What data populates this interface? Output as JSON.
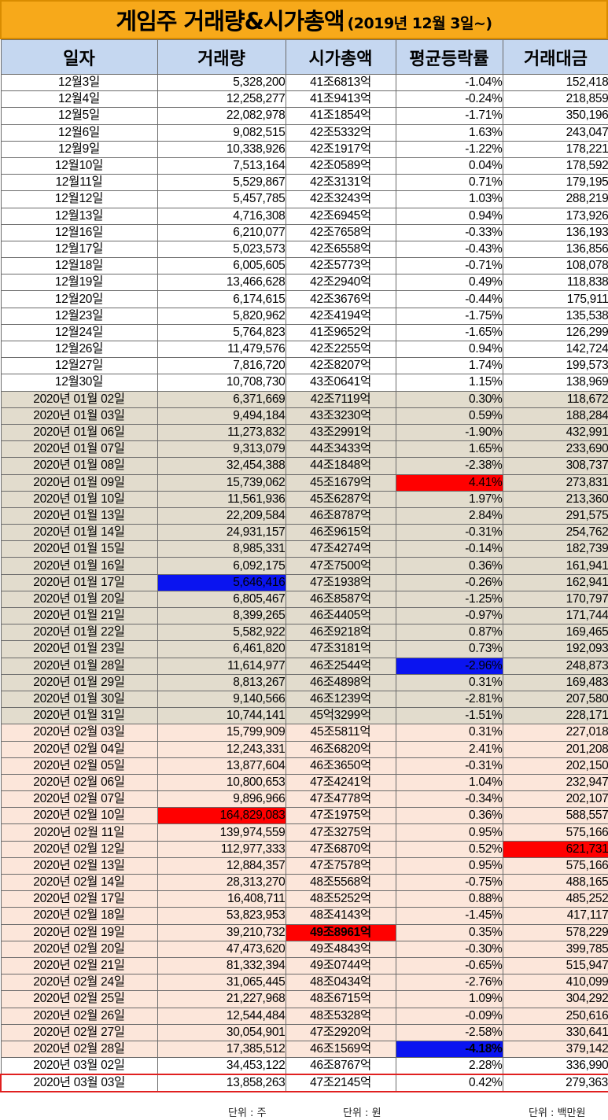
{
  "title": {
    "main": "게임주 거래량&시가총액",
    "sub": "(2019년 12월 3일~)"
  },
  "columns": [
    "일자",
    "거래량",
    "시가총액",
    "평균등락률",
    "거래대금"
  ],
  "units": {
    "volume": "단위 : 주",
    "cap": "단위 : 원",
    "amount": "단위 : 백만원"
  },
  "colors": {
    "title_bg": "#f7a91a",
    "header_bg": "#c5d7f0",
    "dec_bg": "#ffffff",
    "jan_bg": "#e2dccd",
    "feb_bg": "#fce6da",
    "red": "#e8141a",
    "blue": "#1420c8",
    "light_blue": "#1878c8",
    "highlight_red": "#ff0000",
    "highlight_blue": "#0a14f0"
  },
  "rows": [
    {
      "period": "dec",
      "date": "12월3일",
      "volume": "5,328,200",
      "cap": "41조6813억",
      "rate": "-1.04%",
      "amount": "152,418",
      "s": {
        "volume": "lblue",
        "rate": "blue"
      }
    },
    {
      "period": "dec",
      "date": "12월4일",
      "volume": "12,258,277",
      "cap": "41조9413억",
      "rate": "-0.24%",
      "amount": "218,859",
      "s": {
        "rate": "blue"
      }
    },
    {
      "period": "dec",
      "date": "12월5일",
      "volume": "22,082,978",
      "cap": "41조1854억",
      "rate": "-1.71%",
      "amount": "350,196",
      "s": {
        "volume": "red",
        "cap": "lblue",
        "rate": "blue",
        "amount": "red"
      }
    },
    {
      "period": "dec",
      "date": "12월6일",
      "volume": "9,082,515",
      "cap": "42조5332억",
      "rate": "1.63%",
      "amount": "243,047",
      "s": {
        "rate": "red"
      }
    },
    {
      "period": "dec",
      "date": "12월9일",
      "volume": "10,338,926",
      "cap": "42조1917억",
      "rate": "-1.22%",
      "amount": "178,221",
      "s": {
        "rate": "blue"
      }
    },
    {
      "period": "dec",
      "date": "12월10일",
      "volume": "7,513,164",
      "cap": "42조0589억",
      "rate": "0.04%",
      "amount": "178,592",
      "s": {
        "rate": "red"
      }
    },
    {
      "period": "dec",
      "date": "12월11일",
      "volume": "5,529,867",
      "cap": "42조3131억",
      "rate": "0.71%",
      "amount": "179,195",
      "s": {
        "rate": "red"
      }
    },
    {
      "period": "dec",
      "date": "12월12일",
      "volume": "5,457,785",
      "cap": "42조3243억",
      "rate": "1.03%",
      "amount": "288,219",
      "s": {
        "rate": "red"
      }
    },
    {
      "period": "dec",
      "date": "12월13일",
      "volume": "4,716,308",
      "cap": "42조6945억",
      "rate": "0.94%",
      "amount": "173,926",
      "s": {
        "volume": "blue",
        "rate": "red"
      }
    },
    {
      "period": "dec",
      "date": "12월16일",
      "volume": "6,210,077",
      "cap": "42조7658억",
      "rate": "-0.33%",
      "amount": "136,193",
      "s": {
        "cap": "red",
        "rate": "blue"
      }
    },
    {
      "period": "dec",
      "date": "12월17일",
      "volume": "5,023,573",
      "cap": "42조6558억",
      "rate": "-0.43%",
      "amount": "136,856",
      "s": {
        "rate": "blue"
      }
    },
    {
      "period": "dec",
      "date": "12월18일",
      "volume": "6,005,605",
      "cap": "42조5773억",
      "rate": "-0.71%",
      "amount": "108,078",
      "s": {
        "rate": "blue",
        "amount": "blue"
      }
    },
    {
      "period": "dec",
      "date": "12월19일",
      "volume": "13,466,628",
      "cap": "42조2940억",
      "rate": "0.49%",
      "amount": "118,838",
      "s": {
        "rate": "red"
      }
    },
    {
      "period": "dec",
      "date": "12월20일",
      "volume": "6,174,615",
      "cap": "42조3676억",
      "rate": "-0.44%",
      "amount": "175,911",
      "s": {
        "rate": "blue"
      }
    },
    {
      "period": "dec",
      "date": "12월23일",
      "volume": "5,820,962",
      "cap": "42조4194억",
      "rate": "-1.75%",
      "amount": "135,538",
      "s": {
        "rate": "blue"
      }
    },
    {
      "period": "dec",
      "date": "12월24일",
      "volume": "5,764,823",
      "cap": "41조9652억",
      "rate": "-1.65%",
      "amount": "126,299",
      "s": {
        "rate": "blue"
      }
    },
    {
      "period": "dec",
      "date": "12월26일",
      "volume": "11,479,576",
      "cap": "42조2255억",
      "rate": "0.94%",
      "amount": "142,724",
      "s": {
        "rate": "red"
      }
    },
    {
      "period": "dec",
      "date": "12월27일",
      "volume": "7,816,720",
      "cap": "42조8207억",
      "rate": "1.74%",
      "amount": "199,573",
      "s": {
        "rate": "red"
      }
    },
    {
      "period": "dec",
      "date": "12월30일",
      "volume": "10,708,730",
      "cap": "43조0641억",
      "rate": "1.15%",
      "amount": "138,969",
      "s": {
        "rate": "red"
      }
    },
    {
      "period": "jan",
      "date": "2020년 01월 02일",
      "volume": "6,371,669",
      "cap": "42조7119억",
      "rate": "0.30%",
      "amount": "118,672",
      "s": {
        "cap": "lblue",
        "rate": "red",
        "amount": "lblue"
      }
    },
    {
      "period": "jan",
      "date": "2020년 01월 03일",
      "volume": "9,494,184",
      "cap": "43조3230억",
      "rate": "0.59%",
      "amount": "188,284",
      "s": {
        "rate": "red"
      }
    },
    {
      "period": "jan",
      "date": "2020년 01월 06일",
      "volume": "11,273,832",
      "cap": "43조2991억",
      "rate": "-1.90%",
      "amount": "432,991",
      "s": {
        "rate": "blue",
        "amount": "red"
      }
    },
    {
      "period": "jan",
      "date": "2020년 01월 07일",
      "volume": "9,313,079",
      "cap": "44조3433억",
      "rate": "1.65%",
      "amount": "233,690",
      "s": {
        "rate": "red"
      }
    },
    {
      "period": "jan",
      "date": "2020년 01월 08일",
      "volume": "32,454,388",
      "cap": "44조1848억",
      "rate": "-2.38%",
      "amount": "308,737",
      "s": {
        "volume": "red",
        "rate": "blue"
      }
    },
    {
      "period": "jan",
      "date": "2020년 01월 09일",
      "volume": "15,739,062",
      "cap": "45조1679억",
      "rate": "4.41%",
      "amount": "273,831",
      "s": {
        "rate": "hl-red"
      }
    },
    {
      "period": "jan",
      "date": "2020년 01월 10일",
      "volume": "11,561,936",
      "cap": "45조6287억",
      "rate": "1.97%",
      "amount": "213,360",
      "s": {
        "rate": "red"
      }
    },
    {
      "period": "jan",
      "date": "2020년 01월 13일",
      "volume": "22,209,584",
      "cap": "46조8787억",
      "rate": "2.84%",
      "amount": "291,575",
      "s": {
        "rate": "red"
      }
    },
    {
      "period": "jan",
      "date": "2020년 01월 14일",
      "volume": "24,931,157",
      "cap": "46조9615억",
      "rate": "-0.31%",
      "amount": "254,762",
      "s": {
        "rate": "blue"
      }
    },
    {
      "period": "jan",
      "date": "2020년 01월 15일",
      "volume": "8,985,331",
      "cap": "47조4274억",
      "rate": "-0.14%",
      "amount": "182,739",
      "s": {
        "rate": "blue"
      }
    },
    {
      "period": "jan",
      "date": "2020년 01월 16일",
      "volume": "6,092,175",
      "cap": "47조7500억",
      "rate": "0.36%",
      "amount": "161,941",
      "s": {
        "volume": "blue",
        "cap": "red",
        "rate": "red"
      }
    },
    {
      "period": "jan",
      "date": "2020년 01월 17일",
      "volume": "5,646,416",
      "cap": "47조1938억",
      "rate": "-0.26%",
      "amount": "162,941",
      "s": {
        "volume": "hl-blue",
        "rate": "blue"
      }
    },
    {
      "period": "jan",
      "date": "2020년 01월 20일",
      "volume": "6,805,467",
      "cap": "46조8587억",
      "rate": "-1.25%",
      "amount": "170,797",
      "s": {
        "rate": "blue"
      }
    },
    {
      "period": "jan",
      "date": "2020년 01월 21일",
      "volume": "8,399,265",
      "cap": "46조4405억",
      "rate": "-0.97%",
      "amount": "171,744",
      "s": {
        "rate": "blue"
      }
    },
    {
      "period": "jan",
      "date": "2020년 01월 22일",
      "volume": "5,582,922",
      "cap": "46조9218억",
      "rate": "0.87%",
      "amount": "169,465",
      "s": {
        "rate": "red"
      }
    },
    {
      "period": "jan",
      "date": "2020년 01월 23일",
      "volume": "6,461,820",
      "cap": "47조3181억",
      "rate": "0.73%",
      "amount": "192,093",
      "s": {
        "rate": "red"
      }
    },
    {
      "period": "jan",
      "date": "2020년 01월 28일",
      "volume": "11,614,977",
      "cap": "46조2544억",
      "rate": "-2.96%",
      "amount": "248,873",
      "s": {
        "rate": "hl-blue"
      }
    },
    {
      "period": "jan",
      "date": "2020년 01월 29일",
      "volume": "8,813,267",
      "cap": "46조4898억",
      "rate": "0.31%",
      "amount": "169,483",
      "s": {
        "rate": "red"
      }
    },
    {
      "period": "jan",
      "date": "2020년 01월 30일",
      "volume": "9,140,566",
      "cap": "46조1239억",
      "rate": "-2.81%",
      "amount": "207,580",
      "s": {
        "rate": "blue"
      }
    },
    {
      "period": "jan",
      "date": "2020년 01월 31일",
      "volume": "10,744,141",
      "cap": "45억3299억",
      "rate": "-1.51%",
      "amount": "228,171",
      "s": {
        "rate": "blue"
      }
    },
    {
      "period": "feb",
      "date": "2020년 02월 03일",
      "volume": "15,799,909",
      "cap": "45조5811억",
      "rate": "0.31%",
      "amount": "227,018",
      "s": {
        "cap": "lblue",
        "rate": "red"
      }
    },
    {
      "period": "feb",
      "date": "2020년 02월 04일",
      "volume": "12,243,331",
      "cap": "46조6820억",
      "rate": "2.41%",
      "amount": "201,208",
      "s": {
        "rate": "red"
      }
    },
    {
      "period": "feb",
      "date": "2020년 02월 05일",
      "volume": "13,877,604",
      "cap": "46조3650억",
      "rate": "-0.31%",
      "amount": "202,150",
      "s": {
        "rate": "blue"
      }
    },
    {
      "period": "feb",
      "date": "2020년 02월 06일",
      "volume": "10,800,653",
      "cap": "47조4241억",
      "rate": "1.04%",
      "amount": "232,947",
      "s": {
        "rate": "red",
        "amount": "red"
      }
    },
    {
      "period": "feb",
      "date": "2020년 02월 07일",
      "volume": "9,896,966",
      "cap": "47조4778억",
      "rate": "-0.34%",
      "amount": "202,107",
      "s": {
        "volume": "lblue",
        "rate": "blue"
      }
    },
    {
      "period": "feb",
      "date": "2020년 02월 10일",
      "volume": "164,829,083",
      "cap": "47조1975억",
      "rate": "0.36%",
      "amount": "588,557",
      "s": {
        "volume": "hl-red",
        "rate": "red"
      }
    },
    {
      "period": "feb",
      "date": "2020년 02월 11일",
      "volume": "139,974,559",
      "cap": "47조3275억",
      "rate": "0.95%",
      "amount": "575,166",
      "s": {
        "rate": "red"
      }
    },
    {
      "period": "feb",
      "date": "2020년 02월 12일",
      "volume": "112,977,333",
      "cap": "47조6870억",
      "rate": "0.52%",
      "amount": "621,731",
      "s": {
        "rate": "red",
        "amount": "hl-red"
      }
    },
    {
      "period": "feb",
      "date": "2020년 02월 13일",
      "volume": "12,884,357",
      "cap": "47조7578억",
      "rate": "0.95%",
      "amount": "575,166",
      "s": {
        "rate": "red"
      }
    },
    {
      "period": "feb",
      "date": "2020년 02월 14일",
      "volume": "28,313,270",
      "cap": "48조5568억",
      "rate": "-0.75%",
      "amount": "488,165",
      "s": {
        "cap": "red",
        "rate": "blue"
      }
    },
    {
      "period": "feb",
      "date": "2020년 02월 17일",
      "volume": "16,408,711",
      "cap": "48조5252억",
      "rate": "0.88%",
      "amount": "485,252",
      "s": {
        "rate": "red"
      }
    },
    {
      "period": "feb",
      "date": "2020년 02월 18일",
      "volume": "53,823,953",
      "cap": "48조4143억",
      "rate": "-1.45%",
      "amount": "417,117",
      "s": {
        "rate": "blue"
      }
    },
    {
      "period": "feb",
      "date": "2020년 02월 19일",
      "volume": "39,210,732",
      "cap": "49조8961억",
      "rate": "0.35%",
      "amount": "578,229",
      "s": {
        "cap": "hl-red big",
        "rate": "red"
      }
    },
    {
      "period": "feb",
      "date": "2020년 02월 20일",
      "volume": "47,473,620",
      "cap": "49조4843억",
      "rate": "-0.30%",
      "amount": "399,785",
      "s": {
        "rate": "blue"
      }
    },
    {
      "period": "feb",
      "date": "2020년 02월 21일",
      "volume": "81,332,394",
      "cap": "49조0744억",
      "rate": "-0.65%",
      "amount": "515,947",
      "s": {
        "rate": "blue"
      }
    },
    {
      "period": "feb",
      "date": "2020년 02월 24일",
      "volume": "31,065,445",
      "cap": "48조0434억",
      "rate": "-2.76%",
      "amount": "410,099",
      "s": {
        "rate": "blue"
      }
    },
    {
      "period": "feb",
      "date": "2020년 02월 25일",
      "volume": "21,227,968",
      "cap": "48조6715억",
      "rate": "1.09%",
      "amount": "304,292",
      "s": {
        "rate": "red"
      }
    },
    {
      "period": "feb",
      "date": "2020년 02월 26일",
      "volume": "12,544,484",
      "cap": "48조5328억",
      "rate": "-0.09%",
      "amount": "250,616",
      "s": {
        "rate": "blue"
      }
    },
    {
      "period": "feb",
      "date": "2020년 02월 27일",
      "volume": "30,054,901",
      "cap": "47조2920억",
      "rate": "-2.58%",
      "amount": "330,641",
      "s": {
        "rate": "blue"
      }
    },
    {
      "period": "feb",
      "date": "2020년 02월 28일",
      "volume": "17,385,512",
      "cap": "46조1569억",
      "rate": "-4.18%",
      "amount": "379,142",
      "s": {
        "cap": "blue",
        "rate": "hl-blue big"
      }
    },
    {
      "period": "mar",
      "date": "2020년 03월 02일",
      "volume": "34,453,122",
      "cap": "46조8767억",
      "rate": "2.28%",
      "amount": "336,990",
      "s": {
        "rate": "red"
      }
    },
    {
      "period": "mar",
      "last": true,
      "date": "2020년 03월 03일",
      "volume": "13,858,263",
      "cap": "47조2145억",
      "rate": "0.42%",
      "amount": "279,363",
      "s": {
        "rate": "red"
      }
    }
  ]
}
